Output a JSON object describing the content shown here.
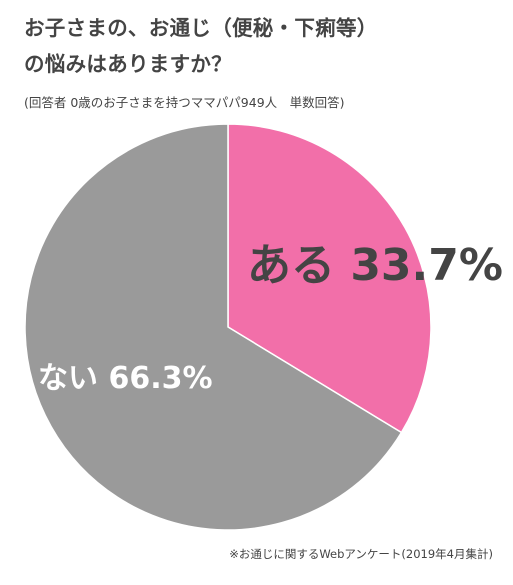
{
  "header": {
    "title_line1": "お子さまの、お通じ（便秘・下痢等）",
    "title_line2": "の悩みはありますか？",
    "subtitle": "(回答者 0歳のお子さまを持つママパパ949人　単数回答)"
  },
  "footer": {
    "note": "※お通じに関するWebアンケート(2019年4月集計)"
  },
  "chart_data": {
    "type": "pie",
    "title": "お子さまの、お通じ（便秘・下痢等）の悩みはありますか？",
    "subtitle": "(回答者 0歳のお子さまを持つママパパ949人　単数回答)",
    "slices": [
      {
        "label": "ある",
        "value": 33.7,
        "display": "ある 33.7%",
        "color": "#f26fa9",
        "text_color": "#444444"
      },
      {
        "label": "ない",
        "value": 66.3,
        "display": "ない 66.3%",
        "color": "#9a9a9a",
        "text_color": "#ffffff"
      }
    ],
    "start_angle": "12 o'clock",
    "direction": "clockwise",
    "legend": "none"
  }
}
